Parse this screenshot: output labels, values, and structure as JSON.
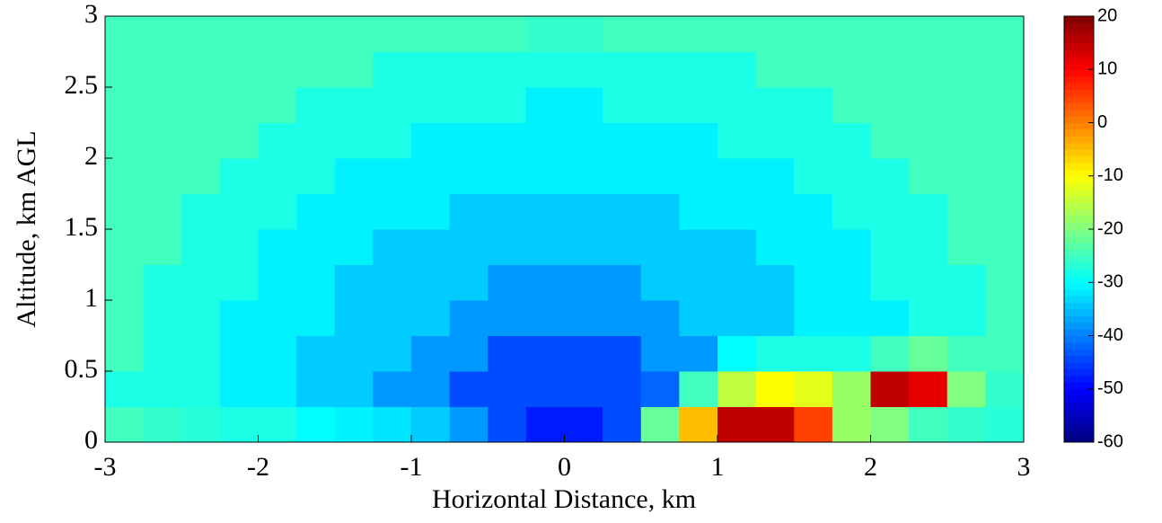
{
  "chart_data": {
    "type": "heatmap",
    "x_label": "Horizontal Distance, km",
    "y_label": "Altitude, km AGL",
    "x": [
      -2.875,
      -2.625,
      -2.375,
      -2.125,
      -1.875,
      -1.625,
      -1.375,
      -1.125,
      -0.875,
      -0.625,
      -0.375,
      -0.125,
      0.125,
      0.375,
      0.625,
      0.875,
      1.125,
      1.375,
      1.625,
      1.875,
      2.125,
      2.375,
      2.625,
      2.875
    ],
    "y": [
      0.125,
      0.375,
      0.625,
      0.875,
      1.125,
      1.375,
      1.625,
      1.875,
      2.125,
      2.375,
      2.625,
      2.875
    ],
    "cell_size": 0.25,
    "values": [
      [
        -25,
        -26,
        -27,
        -28,
        -28,
        -30,
        -31,
        -32,
        -34,
        -38,
        -44,
        -48,
        -48,
        -44,
        -22,
        -5,
        15,
        15,
        5,
        -18,
        -20,
        -25,
        -26,
        -27
      ],
      [
        -28,
        -28,
        -28,
        -31,
        -31,
        -34,
        -34,
        -38,
        -38,
        -44,
        -44,
        -44,
        -44,
        -44,
        -42,
        -25,
        -15,
        -10,
        -12,
        -18,
        15,
        12,
        -20,
        -26
      ],
      [
        -25,
        -28,
        -28,
        -31,
        -31,
        -34,
        -34,
        -34,
        -38,
        -38,
        -44,
        -44,
        -44,
        -44,
        -38,
        -38,
        -30,
        -28,
        -28,
        -28,
        -25,
        -22,
        -25,
        -25
      ],
      [
        -25,
        -28,
        -28,
        -31,
        -31,
        -31,
        -34,
        -34,
        -34,
        -38,
        -38,
        -38,
        -38,
        -38,
        -38,
        -34,
        -34,
        -34,
        -31,
        -31,
        -31,
        -28,
        -28,
        -25
      ],
      [
        -25,
        -28,
        -28,
        -28,
        -31,
        -31,
        -34,
        -34,
        -34,
        -34,
        -38,
        -38,
        -38,
        -38,
        -34,
        -34,
        -34,
        -34,
        -31,
        -31,
        -28,
        -28,
        -28,
        -25
      ],
      [
        -25,
        -25,
        -28,
        -28,
        -31,
        -31,
        -31,
        -34,
        -34,
        -34,
        -34,
        -34,
        -34,
        -34,
        -34,
        -34,
        -34,
        -31,
        -31,
        -31,
        -28,
        -28,
        -25,
        -25
      ],
      [
        -25,
        -25,
        -28,
        -28,
        -28,
        -31,
        -31,
        -31,
        -31,
        -34,
        -34,
        -34,
        -34,
        -34,
        -34,
        -31,
        -31,
        -31,
        -31,
        -28,
        -28,
        -28,
        -25,
        -25
      ],
      [
        -25,
        -25,
        -25,
        -28,
        -28,
        -28,
        -31,
        -31,
        -31,
        -31,
        -31,
        -31,
        -31,
        -31,
        -31,
        -31,
        -31,
        -31,
        -28,
        -28,
        -28,
        -25,
        -25,
        -25
      ],
      [
        -25,
        -25,
        -25,
        -25,
        -28,
        -28,
        -28,
        -28,
        -31,
        -31,
        -31,
        -31,
        -31,
        -31,
        -31,
        -31,
        -28,
        -28,
        -28,
        -28,
        -25,
        -25,
        -25,
        -25
      ],
      [
        -25,
        -25,
        -25,
        -25,
        -25,
        -28,
        -28,
        -28,
        -28,
        -28,
        -28,
        -31,
        -31,
        -28,
        -28,
        -28,
        -28,
        -28,
        -28,
        -25,
        -25,
        -25,
        -25,
        -25
      ],
      [
        -25,
        -25,
        -25,
        -25,
        -25,
        -25,
        -25,
        -28,
        -28,
        -28,
        -28,
        -28,
        -28,
        -28,
        -28,
        -28,
        -28,
        -25,
        -25,
        -25,
        -25,
        -25,
        -25,
        -25
      ],
      [
        -25,
        -25,
        -25,
        -25,
        -25,
        -25,
        -25,
        -25,
        -25,
        -25,
        -25,
        -26,
        -26,
        -25,
        -25,
        -25,
        -25,
        -25,
        -25,
        -25,
        -25,
        -25,
        -25,
        -25
      ]
    ],
    "xlim": [
      -3,
      3
    ],
    "xticks": [
      -3,
      -2,
      -1,
      0,
      1,
      2,
      3
    ],
    "ylim": [
      0,
      3
    ],
    "yticks": [
      0,
      0.5,
      1,
      1.5,
      2,
      2.5,
      3
    ],
    "colormap": "jet",
    "clim": [
      -60,
      20
    ],
    "cticks": [
      -60,
      -50,
      -40,
      -30,
      -20,
      -10,
      0,
      10,
      20
    ]
  }
}
